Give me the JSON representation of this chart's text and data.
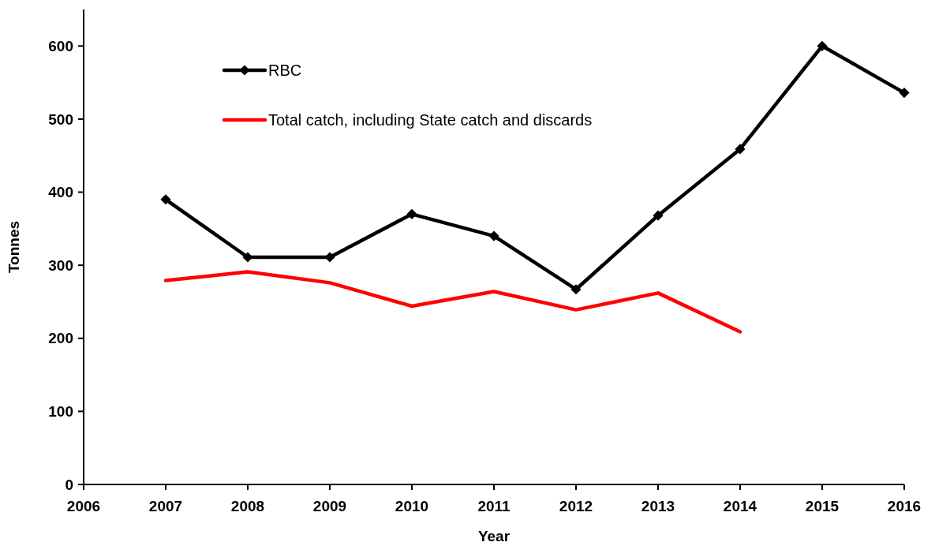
{
  "chart_data": {
    "type": "line",
    "xlabel": "Year",
    "ylabel": "Tonnes",
    "x": [
      2007,
      2008,
      2009,
      2010,
      2011,
      2012,
      2013,
      2014,
      2015,
      2016
    ],
    "series": [
      {
        "name": "RBC",
        "color": "#000000",
        "marker": "diamond",
        "values": [
          390,
          311,
          311,
          370,
          340,
          267,
          368,
          459,
          600,
          536
        ]
      },
      {
        "name": "Total catch, including State catch and discards",
        "color": "#ff0000",
        "marker": "none",
        "values": [
          279,
          291,
          276,
          244,
          264,
          239,
          262,
          209,
          null,
          null
        ]
      }
    ],
    "xlim": [
      2006,
      2016
    ],
    "xticks": [
      2006,
      2007,
      2008,
      2009,
      2010,
      2011,
      2012,
      2013,
      2014,
      2015,
      2016
    ],
    "ylim": [
      0,
      650
    ],
    "yticks": [
      0,
      100,
      200,
      300,
      400,
      500,
      600
    ],
    "grid": false,
    "legend": "top left",
    "line_style": "solid"
  }
}
